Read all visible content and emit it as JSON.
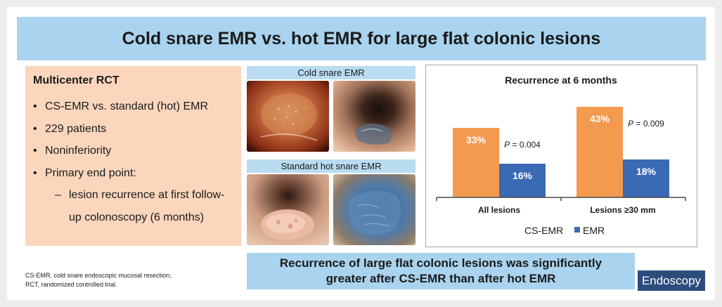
{
  "title": "Cold snare EMR vs. hot EMR for large flat colonic lesions",
  "study": {
    "heading": "Multicenter RCT",
    "bullets": [
      "CS-EMR vs. standard (hot) EMR",
      "229 patients",
      "Noninferiority",
      "Primary end point:"
    ],
    "sub_dash": "–",
    "sub_line_1": "lesion recurrence at first follow-",
    "sub_line_2": "up colonoscopy (6 months)"
  },
  "images": {
    "cold_label": "Cold snare EMR",
    "hot_label": "Standard hot snare EMR"
  },
  "chart_data": {
    "type": "bar",
    "title": "Recurrence at 6 months",
    "categories": [
      "All lesions",
      "Lesions ≥30 mm"
    ],
    "series": [
      {
        "name": "CS-EMR",
        "values": [
          33,
          43
        ],
        "labels": [
          "33%",
          "43%"
        ],
        "color": "#f39a4f"
      },
      {
        "name": "EMR",
        "values": [
          16,
          18
        ],
        "labels": [
          "16%",
          "18%"
        ],
        "color": "#3a6ab3"
      }
    ],
    "p_values": [
      {
        "italic": "P",
        "rest": " = 0.004"
      },
      {
        "italic": "P",
        "rest": " = 0.009"
      }
    ],
    "ylim": [
      0,
      50
    ],
    "legend_position": "bottom"
  },
  "conclusion": {
    "line_1": "Recurrence of large flat colonic lesions was significantly",
    "line_2": "greater after CS-EMR than after hot EMR"
  },
  "footnote": {
    "line_1": "CS-EMR, cold snare endoscopic mucosal resection;",
    "line_2": "RCT, randomized controlled trial."
  },
  "journal": "Endoscopy",
  "colors": {
    "title_bg": "#a9d3ee",
    "study_bg": "#fbd6bd",
    "cs_emr": "#f39a4f",
    "emr": "#3a6ab3",
    "journal_bg": "#2c4c7c"
  }
}
